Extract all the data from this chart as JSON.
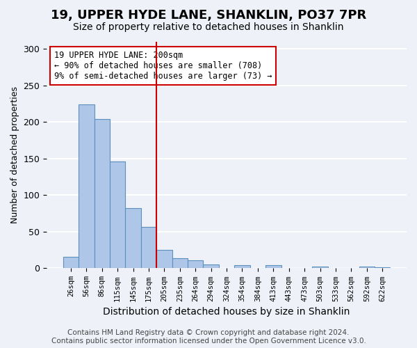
{
  "title": "19, UPPER HYDE LANE, SHANKLIN, PO37 7PR",
  "subtitle": "Size of property relative to detached houses in Shanklin",
  "xlabel": "Distribution of detached houses by size in Shanklin",
  "ylabel": "Number of detached properties",
  "bin_labels": [
    "26sqm",
    "56sqm",
    "86sqm",
    "115sqm",
    "145sqm",
    "175sqm",
    "205sqm",
    "235sqm",
    "264sqm",
    "294sqm",
    "324sqm",
    "354sqm",
    "384sqm",
    "413sqm",
    "443sqm",
    "473sqm",
    "503sqm",
    "533sqm",
    "562sqm",
    "592sqm",
    "622sqm"
  ],
  "bar_heights": [
    16,
    224,
    204,
    146,
    82,
    57,
    25,
    14,
    11,
    5,
    0,
    4,
    0,
    4,
    0,
    0,
    2,
    0,
    0,
    2,
    1
  ],
  "bar_color": "#aec6e8",
  "bar_edge_color": "#5a8fbe",
  "vline_x_index": 6,
  "vline_color": "#cc0000",
  "annotation_line1": "19 UPPER HYDE LANE: 200sqm",
  "annotation_line2": "← 90% of detached houses are smaller (708)",
  "annotation_line3": "9% of semi-detached houses are larger (73) →",
  "annotation_box_color": "#cc0000",
  "ylim": [
    0,
    310
  ],
  "yticks": [
    0,
    50,
    100,
    150,
    200,
    250,
    300
  ],
  "footer_text": "Contains HM Land Registry data © Crown copyright and database right 2024.\nContains public sector information licensed under the Open Government Licence v3.0.",
  "bg_color": "#eef2f8",
  "plot_bg_color": "#eef2f8",
  "grid_color": "#ffffff",
  "title_fontsize": 13,
  "subtitle_fontsize": 10,
  "xlabel_fontsize": 10,
  "ylabel_fontsize": 9,
  "footer_fontsize": 7.5,
  "annotation_fontsize": 8.5
}
